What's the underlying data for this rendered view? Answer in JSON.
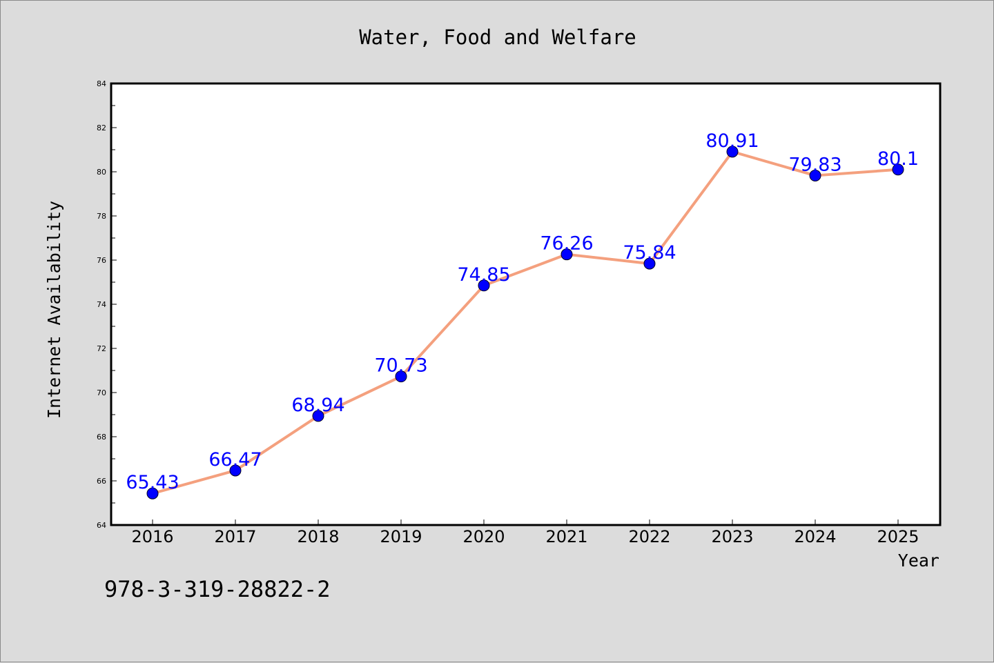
{
  "chart_data": {
    "type": "line",
    "title": "Water, Food and Welfare",
    "xlabel": "Year",
    "ylabel": "Internet Availability",
    "categories": [
      "2016",
      "2017",
      "2018",
      "2019",
      "2020",
      "2021",
      "2022",
      "2023",
      "2024",
      "2025"
    ],
    "series": [
      {
        "values": [
          65.43,
          66.47,
          68.94,
          70.73,
          74.85,
          76.26,
          75.84,
          80.91,
          79.83,
          80.1
        ],
        "labels": [
          "65.43",
          "66.47",
          "68.94",
          "70.73",
          "74.85",
          "76.26",
          "75.84",
          "80.91",
          "79.83",
          "80.1"
        ],
        "line_color": "#f4a07e",
        "marker_color": "#0000ff"
      }
    ],
    "ylim": [
      64,
      84
    ],
    "yticks": [
      "64",
      "66",
      "68",
      "70",
      "72",
      "74",
      "76",
      "78",
      "80",
      "82",
      "84"
    ],
    "grid": false,
    "legend": "none",
    "footer_text": "978-3-319-28822-2"
  },
  "colors": {
    "background": "#dcdcdc",
    "plot_area": "#ffffff",
    "data_label": "#0000ff"
  }
}
